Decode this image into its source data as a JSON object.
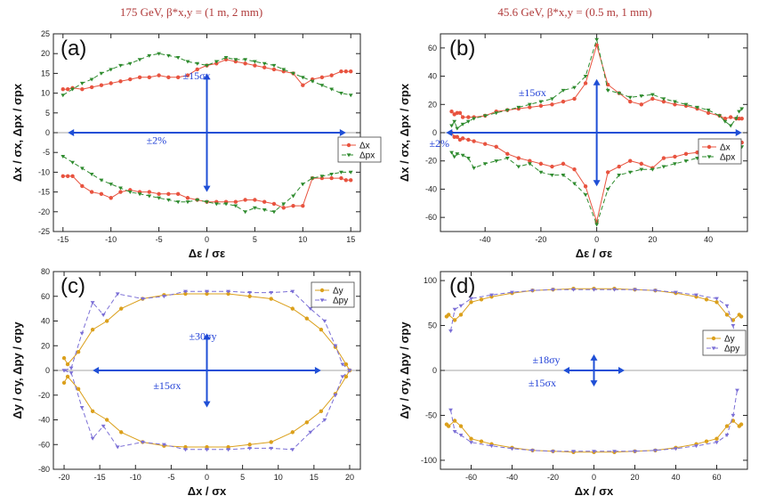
{
  "column_titles": [
    {
      "text": "175 GeV, β*x,y = (1 m, 2 mm)"
    },
    {
      "text": "45.6 GeV, β*x,y = (0.5 m, 1 mm)"
    }
  ],
  "colors": {
    "red": "#e8533f",
    "green": "#2e8b2e",
    "orange": "#dba01c",
    "purple": "#7b6fd6",
    "arrow": "#1f4fd6"
  },
  "chart_data": [
    {
      "panel": "(a)",
      "type": "line",
      "xlabel": "Δε / σε",
      "ylabel": "Δx / σx, Δpx / σpx",
      "xlim": [
        -16,
        16
      ],
      "ylim": [
        -25,
        25
      ],
      "xticks": [
        -15,
        -10,
        -5,
        0,
        5,
        10,
        15
      ],
      "yticks": [
        -25,
        -20,
        -15,
        -10,
        -5,
        0,
        5,
        10,
        15,
        20,
        25
      ],
      "legend": [
        "Δx",
        "Δpx"
      ],
      "legend_position": "right",
      "annotations": [
        "±15σx",
        "±2%"
      ],
      "series": [
        {
          "name": "Δx upper",
          "color": "red",
          "marker": "circle",
          "dash": "",
          "x": [
            -15,
            -14.5,
            -14,
            -13,
            -12,
            -11,
            -10,
            -9,
            -8,
            -7,
            -6,
            -5,
            -4,
            -3,
            -2,
            -1,
            0,
            1,
            2,
            3,
            4,
            5,
            6,
            7,
            8,
            9,
            10,
            11,
            12,
            13,
            14,
            14.5,
            15
          ],
          "y": [
            11,
            11,
            11.3,
            11,
            11.5,
            12,
            12.5,
            13,
            13.5,
            14,
            14,
            14.5,
            14,
            14,
            14.5,
            16,
            17,
            17.5,
            18.5,
            18,
            17.5,
            17,
            16.5,
            16,
            15.5,
            15,
            12,
            13.5,
            14,
            14.5,
            15.5,
            15.5,
            15.5
          ]
        },
        {
          "name": "Δx lower",
          "color": "red",
          "marker": "circle",
          "dash": "",
          "x": [
            -15,
            -14.5,
            -14,
            -13,
            -12,
            -11,
            -10,
            -9,
            -8,
            -7,
            -6,
            -5,
            -4,
            -3,
            -2,
            -1,
            0,
            1,
            2,
            3,
            4,
            5,
            6,
            7,
            8,
            9,
            10,
            11,
            12,
            13,
            14,
            14.5,
            15
          ],
          "y": [
            -11,
            -11,
            -11,
            -13.5,
            -15,
            -15.5,
            -16.5,
            -15,
            -14.5,
            -15,
            -15,
            -15.5,
            -15.5,
            -15.5,
            -16.5,
            -17,
            -17.5,
            -17.5,
            -17.5,
            -17.5,
            -17,
            -17,
            -17.5,
            -18,
            -19,
            -18.5,
            -18.5,
            -11.5,
            -11.5,
            -11.5,
            -11.5,
            -12,
            -12
          ]
        },
        {
          "name": "Δpx upper",
          "color": "green",
          "marker": "triangle",
          "dash": "5,3",
          "x": [
            -15,
            -14,
            -13,
            -12,
            -11,
            -10,
            -9,
            -8,
            -7,
            -6,
            -5,
            -4,
            -3,
            -2,
            -1,
            0,
            1,
            2,
            3,
            4,
            5,
            6,
            7,
            8,
            9,
            10,
            11,
            12,
            13,
            14,
            15
          ],
          "y": [
            9.5,
            11,
            12.5,
            13.5,
            15,
            16,
            17,
            17.5,
            18.5,
            19.5,
            20,
            19.5,
            19,
            18,
            17.5,
            17,
            18,
            19,
            18.5,
            18.5,
            18,
            17.5,
            17,
            16,
            15,
            14,
            13,
            12,
            11,
            10,
            9.5
          ]
        },
        {
          "name": "Δpx lower",
          "color": "green",
          "marker": "triangle",
          "dash": "5,3",
          "x": [
            -15,
            -14,
            -13,
            -12,
            -11,
            -10,
            -9,
            -8,
            -7,
            -6,
            -5,
            -4,
            -3,
            -2,
            -1,
            0,
            1,
            2,
            3,
            4,
            5,
            6,
            7,
            8,
            9,
            10,
            11,
            12,
            13,
            14,
            15
          ],
          "y": [
            -6,
            -7.5,
            -9,
            -10.5,
            -12,
            -13,
            -14,
            -15,
            -15.5,
            -16,
            -16.5,
            -17,
            -17.5,
            -17.5,
            -17,
            -17.5,
            -18,
            -18,
            -18.5,
            -20,
            -19,
            -19.5,
            -20,
            -18,
            -16,
            -13,
            -11.5,
            -11,
            -10.5,
            -10,
            -10
          ]
        }
      ]
    },
    {
      "panel": "(b)",
      "type": "line",
      "xlabel": "Δε / σε",
      "ylabel": "Δx / σx, Δpx / σpx",
      "xlim": [
        -56,
        54
      ],
      "ylim": [
        -70,
        70
      ],
      "xticks": [
        -40,
        -20,
        0,
        20,
        40
      ],
      "yticks": [
        -60,
        -40,
        -20,
        0,
        20,
        40,
        60
      ],
      "legend": [
        "Δx",
        "Δpx"
      ],
      "legend_position": "right",
      "annotations": [
        "±15σx",
        "±2%"
      ],
      "series": [
        {
          "name": "Δx upper",
          "color": "red",
          "marker": "circle",
          "dash": "",
          "x": [
            -52,
            -51,
            -50,
            -49,
            -48,
            -46,
            -44,
            -40,
            -36,
            -32,
            -28,
            -24,
            -20,
            -16,
            -12,
            -8,
            -4,
            0,
            4,
            8,
            12,
            16,
            20,
            24,
            28,
            32,
            36,
            40,
            44,
            46,
            48,
            50,
            51,
            52
          ],
          "y": [
            15,
            13,
            14,
            14,
            11,
            11,
            11,
            12,
            15,
            16,
            17,
            18,
            19,
            20,
            22,
            24,
            35,
            62,
            34,
            28,
            22,
            20,
            24,
            22,
            20,
            19,
            17,
            14,
            12,
            10,
            11,
            10,
            10,
            10
          ]
        },
        {
          "name": "Δx lower",
          "color": "red",
          "marker": "circle",
          "dash": "",
          "x": [
            -52,
            -51,
            -50,
            -49,
            -48,
            -46,
            -44,
            -40,
            -36,
            -32,
            -28,
            -24,
            -20,
            -16,
            -12,
            -8,
            -4,
            0,
            4,
            8,
            12,
            16,
            20,
            24,
            28,
            32,
            36,
            40,
            44,
            46,
            48,
            50,
            51,
            52
          ],
          "y": [
            0,
            -3,
            -3,
            -5,
            -4,
            -5,
            -6,
            -8,
            -10,
            -15,
            -18,
            -20,
            -22,
            -24,
            -22,
            -26,
            -38,
            -63,
            -28,
            -24,
            -20,
            -22,
            -25,
            -18,
            -17,
            -15,
            -14,
            -12,
            -8,
            -6,
            -6,
            -6,
            -7,
            -7
          ]
        },
        {
          "name": "Δpx upper",
          "color": "green",
          "marker": "triangle",
          "dash": "5,3",
          "x": [
            -52,
            -51,
            -50,
            -48,
            -46,
            -44,
            -40,
            -36,
            -32,
            -28,
            -24,
            -20,
            -16,
            -12,
            -8,
            -4,
            0,
            4,
            8,
            12,
            16,
            20,
            24,
            28,
            32,
            36,
            40,
            44,
            46,
            48,
            50,
            51,
            52
          ],
          "y": [
            5,
            8,
            3,
            6,
            8,
            10,
            12,
            14,
            16,
            18,
            20,
            22,
            24,
            30,
            32,
            40,
            66,
            30,
            28,
            25,
            26,
            27,
            24,
            22,
            20,
            18,
            16,
            12,
            8,
            5,
            10,
            15,
            17
          ]
        },
        {
          "name": "Δpx lower",
          "color": "green",
          "marker": "triangle",
          "dash": "5,3",
          "x": [
            -52,
            -51,
            -50,
            -48,
            -46,
            -44,
            -40,
            -36,
            -32,
            -28,
            -24,
            -20,
            -16,
            -12,
            -8,
            -4,
            0,
            4,
            8,
            12,
            16,
            20,
            24,
            28,
            32,
            36,
            40,
            44,
            46,
            48,
            50,
            51,
            52
          ],
          "y": [
            -14,
            -17,
            -15,
            -16,
            -18,
            -25,
            -22,
            -20,
            -18,
            -24,
            -22,
            -28,
            -30,
            -30,
            -36,
            -44,
            -65,
            -40,
            -30,
            -28,
            -26,
            -26,
            -24,
            -22,
            -20,
            -18,
            -16,
            -12,
            -8,
            -6,
            -6,
            -8,
            -10
          ]
        }
      ]
    },
    {
      "panel": "(c)",
      "type": "line",
      "xlabel": "Δx / σx",
      "ylabel": "Δy / σy, Δpy / σpy",
      "xlim": [
        -21.5,
        21.5
      ],
      "ylim": [
        -80,
        80
      ],
      "xticks": [
        -20,
        -15,
        -10,
        -5,
        0,
        5,
        10,
        15,
        20
      ],
      "yticks": [
        -80,
        -60,
        -40,
        -20,
        0,
        20,
        40,
        60,
        80
      ],
      "legend": [
        "Δy",
        "Δpy"
      ],
      "legend_position": "top-right",
      "annotations": [
        "±30σy",
        "±15σx"
      ],
      "series": [
        {
          "name": "Δy upper",
          "color": "orange",
          "marker": "circle",
          "dash": "",
          "x": [
            -20,
            -19.5,
            -18,
            -16,
            -14,
            -12,
            -9,
            -6,
            -3,
            0,
            3,
            6,
            9,
            12,
            14,
            16,
            18,
            19.5,
            20
          ],
          "y": [
            10,
            5,
            15,
            33,
            40,
            50,
            58,
            61,
            62,
            62,
            62,
            60,
            58,
            50,
            42,
            33,
            19,
            5,
            0
          ]
        },
        {
          "name": "Δy lower",
          "color": "orange",
          "marker": "circle",
          "dash": "",
          "x": [
            -20,
            -19.5,
            -18,
            -16,
            -14,
            -12,
            -9,
            -6,
            -3,
            0,
            3,
            6,
            9,
            12,
            14,
            16,
            18,
            19.5,
            20
          ],
          "y": [
            -10,
            -5,
            -15,
            -33,
            -40,
            -50,
            -58,
            -61,
            -62,
            -62,
            -62,
            -60,
            -58,
            -50,
            -42,
            -33,
            -19,
            -5,
            0
          ]
        },
        {
          "name": "Δpy upper",
          "color": "purple",
          "marker": "triangle",
          "dash": "5,3",
          "x": [
            -20,
            -19,
            -17.5,
            -16,
            -14.5,
            -12.5,
            -9,
            -6,
            -3,
            0,
            3,
            6,
            9,
            12,
            14.5,
            16.5,
            18,
            19,
            20
          ],
          "y": [
            0,
            2,
            30,
            55,
            45,
            62,
            58,
            60,
            64,
            64,
            64,
            63,
            63,
            64,
            50,
            40,
            20,
            5,
            0
          ]
        },
        {
          "name": "Δpy lower",
          "color": "purple",
          "marker": "triangle",
          "dash": "5,3",
          "x": [
            -20,
            -19,
            -17.5,
            -16,
            -14.5,
            -12.5,
            -9,
            -6,
            -3,
            0,
            3,
            6,
            9,
            12,
            14.5,
            16.5,
            18,
            19,
            20
          ],
          "y": [
            0,
            -2,
            -30,
            -55,
            -45,
            -62,
            -58,
            -60,
            -64,
            -64,
            -64,
            -63,
            -63,
            -64,
            -50,
            -40,
            -20,
            -5,
            0
          ]
        }
      ]
    },
    {
      "panel": "(d)",
      "type": "line",
      "xlabel": "Δx / σx",
      "ylabel": "Δy / σy, Δpy / σpy",
      "xlim": [
        -75,
        75
      ],
      "ylim": [
        -110,
        110
      ],
      "xticks": [
        -60,
        -40,
        -20,
        0,
        20,
        40,
        60
      ],
      "yticks": [
        -100,
        -50,
        0,
        50,
        100
      ],
      "legend": [
        "Δy",
        "Δpy"
      ],
      "legend_position": "right",
      "annotations": [
        "±18σy",
        "±15σx"
      ],
      "series": [
        {
          "name": "Δy upper",
          "color": "orange",
          "marker": "circle",
          "dash": "",
          "x": [
            -72,
            -71,
            -68,
            -65,
            -60,
            -55,
            -50,
            -40,
            -30,
            -20,
            -10,
            0,
            10,
            20,
            30,
            40,
            50,
            55,
            60,
            65,
            68,
            71,
            72
          ],
          "y": [
            60,
            62,
            56,
            62,
            76,
            79,
            82,
            86,
            89,
            90,
            91,
            91,
            91,
            90,
            89,
            86,
            82,
            79,
            76,
            62,
            56,
            62,
            60
          ]
        },
        {
          "name": "Δy lower",
          "color": "orange",
          "marker": "circle",
          "dash": "",
          "x": [
            -72,
            -71,
            -68,
            -65,
            -60,
            -55,
            -50,
            -40,
            -30,
            -20,
            -10,
            0,
            10,
            20,
            30,
            40,
            50,
            55,
            60,
            65,
            68,
            71,
            72
          ],
          "y": [
            -60,
            -62,
            -56,
            -62,
            -76,
            -79,
            -82,
            -86,
            -89,
            -90,
            -91,
            -91,
            -91,
            -90,
            -89,
            -86,
            -82,
            -79,
            -76,
            -62,
            -56,
            -62,
            -60
          ]
        },
        {
          "name": "Δpy upper",
          "color": "purple",
          "marker": "triangle",
          "dash": "5,3",
          "x": [
            -70,
            -68,
            -65,
            -60,
            -50,
            -40,
            -30,
            -20,
            -10,
            0,
            10,
            20,
            30,
            40,
            50,
            60,
            65,
            68,
            70
          ],
          "y": [
            44,
            68,
            72,
            80,
            84,
            87,
            89,
            90,
            90,
            90,
            90,
            90,
            89,
            87,
            84,
            80,
            72,
            50,
            22
          ]
        },
        {
          "name": "Δpy lower",
          "color": "purple",
          "marker": "triangle",
          "dash": "5,3",
          "x": [
            -70,
            -68,
            -65,
            -60,
            -50,
            -40,
            -30,
            -20,
            -10,
            0,
            10,
            20,
            30,
            40,
            50,
            60,
            65,
            68,
            70
          ],
          "y": [
            -44,
            -68,
            -72,
            -80,
            -84,
            -87,
            -89,
            -90,
            -90,
            -90,
            -90,
            -90,
            -89,
            -87,
            -84,
            -80,
            -72,
            -50,
            -22
          ]
        }
      ]
    }
  ]
}
